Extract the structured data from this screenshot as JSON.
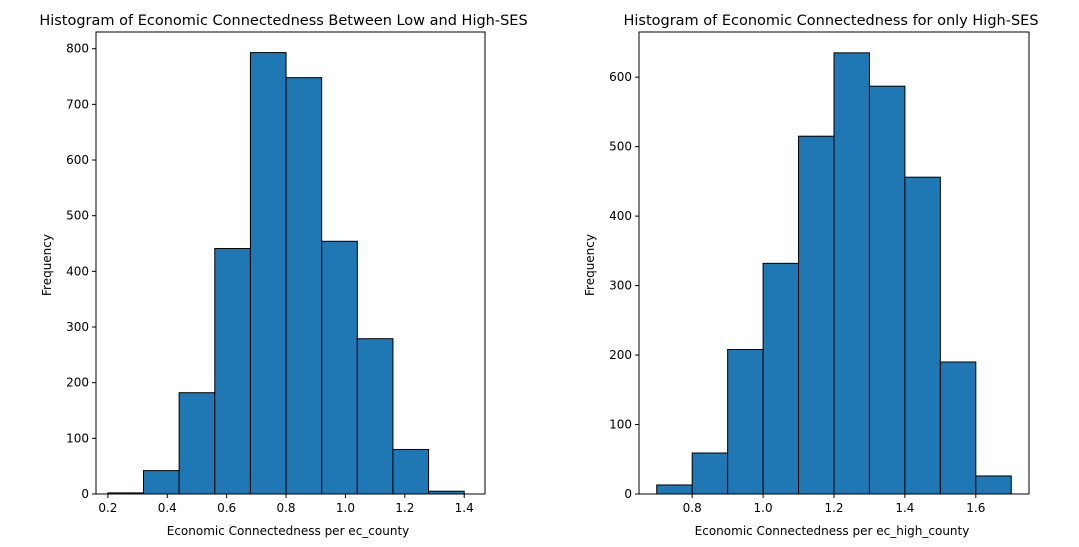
{
  "chart_data": [
    {
      "type": "bar",
      "title": "Histogram of Economic Connectedness Between Low and High-SES",
      "xlabel": "Economic Connectedness per ec_county",
      "ylabel": "Frequency",
      "xlim": [
        0.16,
        1.47
      ],
      "ylim": [
        0,
        830
      ],
      "xticks": [
        0.2,
        0.4,
        0.6,
        0.8,
        1.0,
        1.2,
        1.4
      ],
      "xtick_labels": [
        "0.2",
        "0.4",
        "0.6",
        "0.8",
        "1.0",
        "1.2",
        "1.4"
      ],
      "yticks": [
        0,
        100,
        200,
        300,
        400,
        500,
        600,
        700,
        800
      ],
      "ytick_labels": [
        "0",
        "100",
        "200",
        "300",
        "400",
        "500",
        "600",
        "700",
        "800"
      ],
      "bin_edges": [
        0.2,
        0.32,
        0.44,
        0.56,
        0.68,
        0.8,
        0.92,
        1.04,
        1.16,
        1.28,
        1.4
      ],
      "values": [
        2,
        42,
        182,
        441,
        793,
        748,
        454,
        279,
        80,
        5
      ],
      "bar_color": "#1f77b4",
      "edge_color": "#000000"
    },
    {
      "type": "bar",
      "title": "Histogram of Economic Connectedness for only High-SES",
      "xlabel": "Economic Connectedness per ec_high_county",
      "ylabel": "Frequency",
      "xlim": [
        0.65,
        1.75
      ],
      "ylim": [
        0,
        665
      ],
      "xticks": [
        0.8,
        1.0,
        1.2,
        1.4,
        1.6
      ],
      "xtick_labels": [
        "0.8",
        "1.0",
        "1.2",
        "1.4",
        "1.6"
      ],
      "yticks": [
        0,
        100,
        200,
        300,
        400,
        500,
        600
      ],
      "ytick_labels": [
        "0",
        "100",
        "200",
        "300",
        "400",
        "500",
        "600"
      ],
      "bin_edges": [
        0.7,
        0.8,
        0.9,
        1.0,
        1.1,
        1.2,
        1.3,
        1.4,
        1.5,
        1.6,
        1.7
      ],
      "values": [
        13,
        59,
        208,
        332,
        515,
        635,
        587,
        456,
        190,
        26
      ],
      "bar_color": "#1f77b4",
      "edge_color": "#000000"
    }
  ]
}
